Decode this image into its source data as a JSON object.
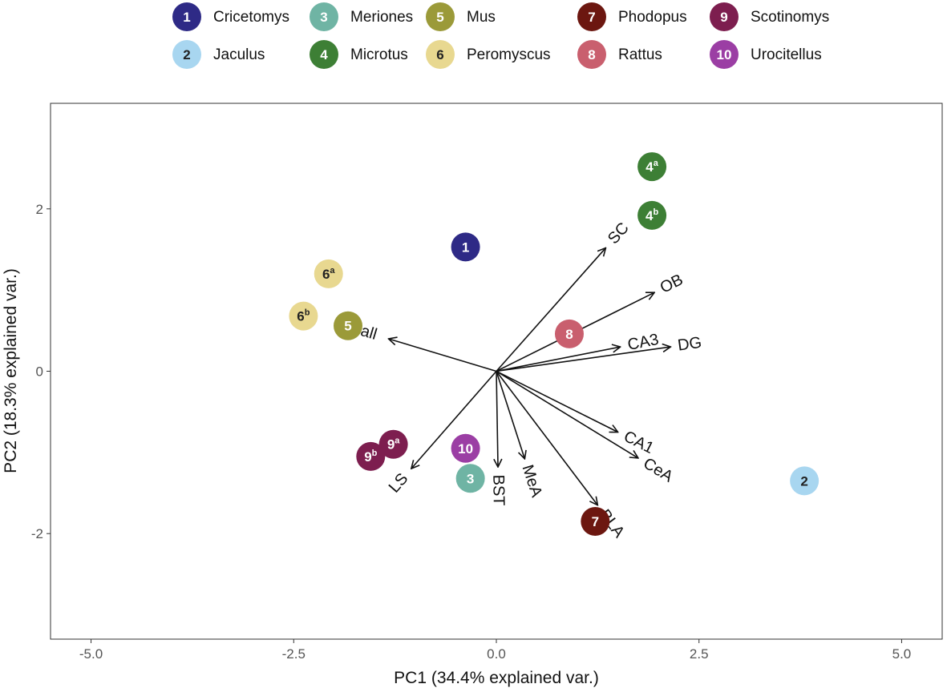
{
  "chart_data": {
    "type": "scatter",
    "subtype": "biplot",
    "xlabel": "PC1 (34.4% explained var.)",
    "ylabel": "PC2 (18.3% explained var.)",
    "xlim": [
      -5.5,
      5.5
    ],
    "ylim": [
      -3.3,
      3.3
    ],
    "xticks": [
      -5.0,
      -2.5,
      0.0,
      2.5,
      5.0
    ],
    "xtick_labels": [
      "-5.0",
      "-2.5",
      "0.0",
      "2.5",
      "5.0"
    ],
    "yticks": [
      -2,
      0,
      2
    ],
    "ytick_labels": [
      "-2",
      "0",
      "2"
    ],
    "grid": false,
    "legend_position": "top",
    "legend": [
      {
        "id": "1",
        "name": "Cricetomys",
        "color": "#2e2a86"
      },
      {
        "id": "2",
        "name": "Jaculus",
        "color": "#a8d6f0"
      },
      {
        "id": "3",
        "name": "Meriones",
        "color": "#6fb4a4"
      },
      {
        "id": "4",
        "name": "Microtus",
        "color": "#3d7f35"
      },
      {
        "id": "5",
        "name": "Mus",
        "color": "#9b9a39"
      },
      {
        "id": "6",
        "name": "Peromyscus",
        "color": "#e8d890"
      },
      {
        "id": "7",
        "name": "Phodopus",
        "color": "#6c1710"
      },
      {
        "id": "8",
        "name": "Rattus",
        "color": "#c95f6e"
      },
      {
        "id": "9",
        "name": "Scotinomys",
        "color": "#7d1e4f"
      },
      {
        "id": "10",
        "name": "Urocitellus",
        "color": "#9b3ea4"
      }
    ],
    "points": [
      {
        "label": "1",
        "sup": "",
        "group": "1",
        "x": -0.38,
        "y": 1.53
      },
      {
        "label": "2",
        "sup": "",
        "group": "2",
        "x": 3.8,
        "y": -1.35
      },
      {
        "label": "3",
        "sup": "",
        "group": "3",
        "x": -0.32,
        "y": -1.32
      },
      {
        "label": "4",
        "sup": "a",
        "group": "4",
        "x": 1.92,
        "y": 2.52
      },
      {
        "label": "4",
        "sup": "b",
        "group": "4",
        "x": 1.92,
        "y": 1.92
      },
      {
        "label": "5",
        "sup": "",
        "group": "5",
        "x": -1.83,
        "y": 0.56
      },
      {
        "label": "6",
        "sup": "a",
        "group": "6",
        "x": -2.07,
        "y": 1.2
      },
      {
        "label": "6",
        "sup": "b",
        "group": "6",
        "x": -2.38,
        "y": 0.68
      },
      {
        "label": "7",
        "sup": "",
        "group": "7",
        "x": 1.22,
        "y": -1.85
      },
      {
        "label": "8",
        "sup": "",
        "group": "8",
        "x": 0.9,
        "y": 0.46
      },
      {
        "label": "9",
        "sup": "a",
        "group": "9",
        "x": -1.27,
        "y": -0.9
      },
      {
        "label": "9",
        "sup": "b",
        "group": "9",
        "x": -1.55,
        "y": -1.05
      },
      {
        "label": "10",
        "sup": "",
        "group": "10",
        "x": -0.38,
        "y": -0.95
      }
    ],
    "loadings": [
      {
        "name": "SC",
        "x": 1.35,
        "y": 1.52
      },
      {
        "name": "OB",
        "x": 1.95,
        "y": 0.97
      },
      {
        "name": "DG",
        "x": 2.15,
        "y": 0.3
      },
      {
        "name": "CA3",
        "x": 1.53,
        "y": 0.3
      },
      {
        "name": "VPall",
        "x": -1.33,
        "y": 0.4
      },
      {
        "name": "CA1",
        "x": 1.5,
        "y": -0.75
      },
      {
        "name": "CeA",
        "x": 1.75,
        "y": -1.07
      },
      {
        "name": "BLA",
        "x": 1.25,
        "y": -1.65
      },
      {
        "name": "MeA",
        "x": 0.35,
        "y": -1.08
      },
      {
        "name": "BST",
        "x": 0.02,
        "y": -1.18
      },
      {
        "name": "LS",
        "x": -1.05,
        "y": -1.2
      }
    ]
  }
}
